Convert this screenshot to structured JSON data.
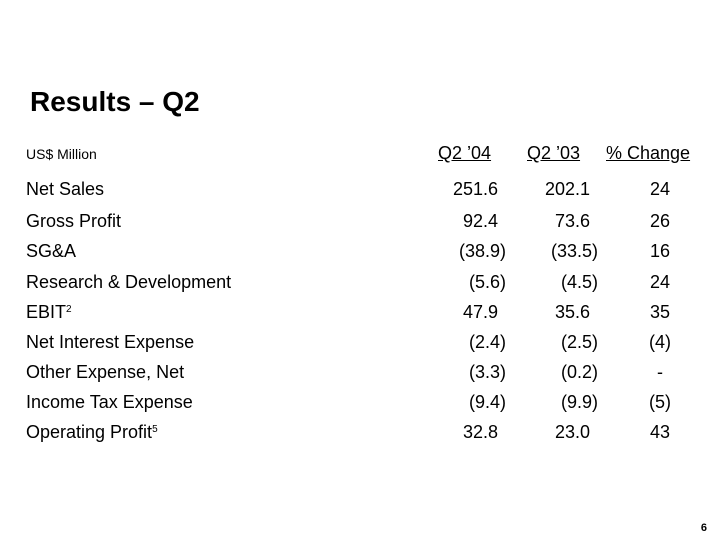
{
  "title": "Results – Q2",
  "unit": "US$ Million",
  "columns": [
    "Q2 ’04",
    "Q2 ’03",
    "% Change"
  ],
  "rows": [
    {
      "label": "Net Sales",
      "sup": "",
      "q2_04": "251.6",
      "q2_03": "202.1",
      "change": "24"
    },
    {
      "label": "Gross Profit",
      "sup": "",
      "q2_04": "92.4",
      "q2_03": "73.6",
      "change": "26"
    },
    {
      "label": "SG&A",
      "sup": "",
      "q2_04": "(38.9)",
      "q2_03": "(33.5)",
      "change": "16"
    },
    {
      "label": "Research & Development",
      "sup": "",
      "q2_04": "(5.6)",
      "q2_03": "(4.5)",
      "change": "24"
    },
    {
      "label": "EBIT",
      "sup": "2",
      "q2_04": "47.9",
      "q2_03": "35.6",
      "change": "35"
    },
    {
      "label": "Net Interest Expense",
      "sup": "",
      "q2_04": "(2.4)",
      "q2_03": "(2.5)",
      "change": "(4)"
    },
    {
      "label": "Other Expense, Net",
      "sup": "",
      "q2_04": "(3.3)",
      "q2_03": "(0.2)",
      "change": "-"
    },
    {
      "label": "Income Tax Expense",
      "sup": "",
      "q2_04": "(9.4)",
      "q2_03": "(9.9)",
      "change": "(5)"
    },
    {
      "label": "Operating Profit",
      "sup": "5",
      "q2_04": "32.8",
      "q2_03": "23.0",
      "change": "43"
    }
  ],
  "page_number": "6"
}
